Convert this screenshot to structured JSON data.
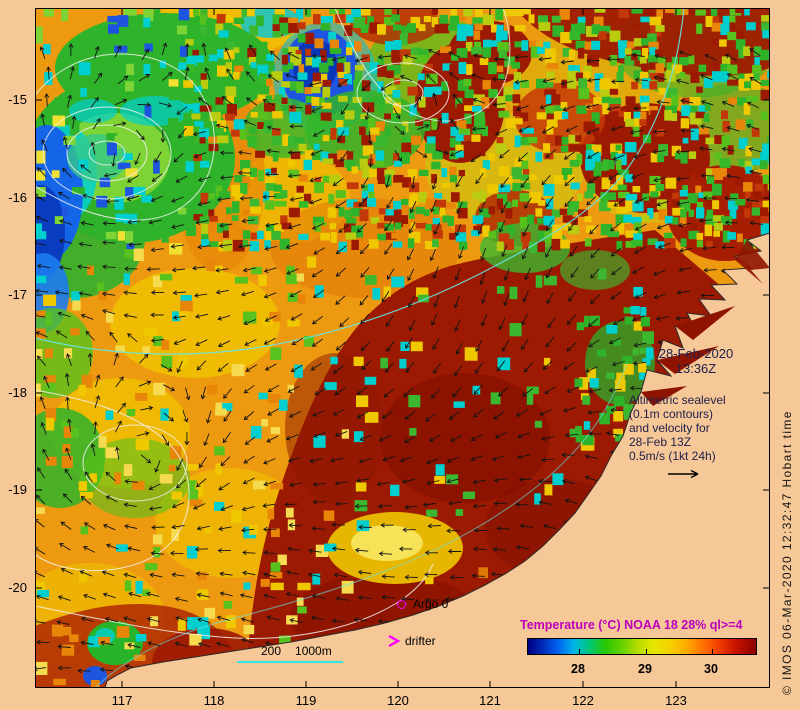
{
  "figure": {
    "axes": {
      "y_ticks": [
        "-15",
        "-16",
        "-17",
        "-18",
        "-19",
        "-20"
      ],
      "x_ticks": [
        "117",
        "118",
        "119",
        "120",
        "121",
        "122",
        "123"
      ]
    },
    "info": {
      "date": "28-Feb-2020",
      "time": "13:36Z",
      "note_lines": [
        "Altimetric sealevel",
        "(0.1m contours)",
        "and velocity for",
        "28-Feb 13Z",
        "0.5m/s (1kt 24h)"
      ]
    },
    "markers": {
      "argo_label": "Argo 0",
      "drifter_label": "drifter"
    },
    "isobath_legend": {
      "labels": [
        "200",
        "1000m"
      ]
    },
    "legend": {
      "title": "Temperature (°C) NOAA 18 28% ql>=4",
      "ticks": [
        "28",
        "29",
        "30"
      ]
    },
    "copyright": "© IMOS 06-Mar-2020 12:32:47 Hobart time",
    "colors": {
      "background": "#F6C897",
      "legend_title": "#BC00BC",
      "marker_magenta": "#FF00FF",
      "isobath_cyan": "#2BE8E8",
      "info_text": "#20204A"
    }
  }
}
